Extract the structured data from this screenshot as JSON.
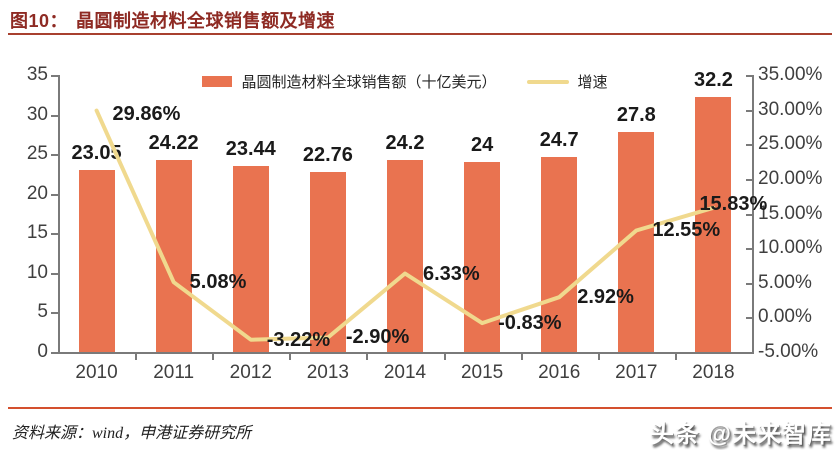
{
  "header": {
    "fig_label": "图10：",
    "title": "晶圆制造材料全球销售额及增速"
  },
  "legend": {
    "bar_label": "晶圆制造材料全球销售额（十亿美元）",
    "line_label": "增速"
  },
  "footer": {
    "source": "资料来源：wind，申港证券研究所",
    "watermark": "头条 @未来智库"
  },
  "colors": {
    "bar": "#E97350",
    "line": "#F0D98E",
    "title": "#8E2A23",
    "rule_top": "#A8402F",
    "rule_bottom": "#D4502E",
    "axis": "#7A7A7A",
    "tick_label": "#3F3F3F",
    "data_label": "#1A1A1A"
  },
  "chart_data": {
    "type": "bar",
    "title": "晶圆制造材料全球销售额及增速",
    "categories": [
      "2010",
      "2011",
      "2012",
      "2013",
      "2014",
      "2015",
      "2016",
      "2017",
      "2018"
    ],
    "series": [
      {
        "name": "晶圆制造材料全球销售额（十亿美元）",
        "type": "bar",
        "axis": "left",
        "values": [
          23.05,
          24.22,
          23.44,
          22.76,
          24.2,
          24,
          24.7,
          27.8,
          32.2
        ],
        "labels": [
          "23.05",
          "24.22",
          "23.44",
          "22.76",
          "24.2",
          "24",
          "24.7",
          "27.8",
          "32.2"
        ]
      },
      {
        "name": "增速",
        "type": "line",
        "axis": "right",
        "values": [
          29.86,
          5.08,
          -3.22,
          -2.9,
          6.33,
          -0.83,
          2.92,
          12.55,
          15.83
        ],
        "labels": [
          "29.86%",
          "5.08%",
          "-3.22%",
          "-2.90%",
          "6.33%",
          "-0.83%",
          "2.92%",
          "12.55%",
          "15.83%"
        ]
      }
    ],
    "left_axis": {
      "min": 0,
      "max": 35,
      "step": 5,
      "ticks": [
        "0",
        "5",
        "10",
        "15",
        "20",
        "25",
        "30",
        "35"
      ]
    },
    "right_axis": {
      "min": -5,
      "max": 35,
      "step": 5,
      "ticks": [
        "-5.00%",
        "0.00%",
        "5.00%",
        "10.00%",
        "15.00%",
        "20.00%",
        "25.00%",
        "30.00%",
        "35.00%"
      ]
    },
    "grid": false,
    "legend_position": "top"
  }
}
